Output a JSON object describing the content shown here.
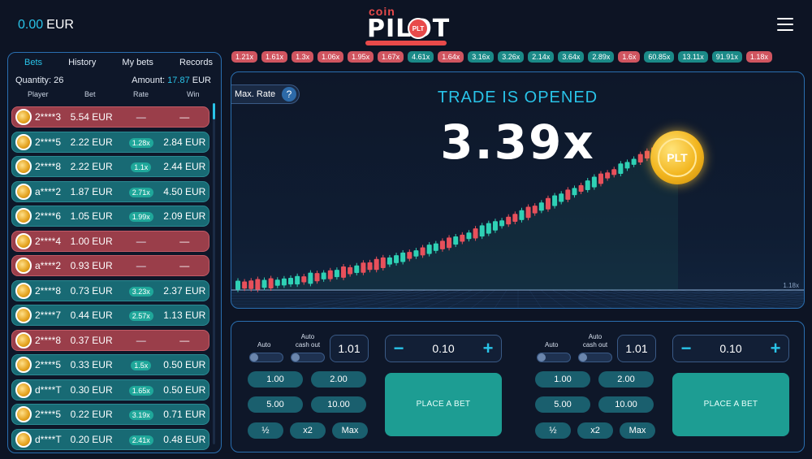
{
  "header": {
    "balance_amount": "0.00",
    "balance_currency": "EUR",
    "logo_top": "coin",
    "logo_main": "PILOT",
    "logo_badge": "PLT"
  },
  "sidebar": {
    "tabs": [
      "Bets",
      "History",
      "My bets",
      "Records"
    ],
    "active_tab": "Bets",
    "quantity_label": "Quantity:",
    "quantity_value": "26",
    "amount_label": "Amount:",
    "amount_value": "17.87",
    "amount_currency": "EUR",
    "columns": [
      "Player",
      "Bet",
      "Rate",
      "Win"
    ],
    "rows": [
      {
        "player": "2****3",
        "bet": "5.54 EUR",
        "rate": "",
        "win": "—",
        "status": "lose"
      },
      {
        "player": "2****5",
        "bet": "2.22 EUR",
        "rate": "1.28x",
        "win": "2.84 EUR",
        "status": "win"
      },
      {
        "player": "2****8",
        "bet": "2.22 EUR",
        "rate": "1.1x",
        "win": "2.44 EUR",
        "status": "win"
      },
      {
        "player": "a****2",
        "bet": "1.87 EUR",
        "rate": "2.71x",
        "win": "4.50 EUR",
        "status": "win"
      },
      {
        "player": "2****6",
        "bet": "1.05 EUR",
        "rate": "1.99x",
        "win": "2.09 EUR",
        "status": "win"
      },
      {
        "player": "2****4",
        "bet": "1.00 EUR",
        "rate": "",
        "win": "—",
        "status": "lose"
      },
      {
        "player": "a****2",
        "bet": "0.93 EUR",
        "rate": "",
        "win": "—",
        "status": "lose"
      },
      {
        "player": "2****8",
        "bet": "0.73 EUR",
        "rate": "3.23x",
        "win": "2.37 EUR",
        "status": "win"
      },
      {
        "player": "2****7",
        "bet": "0.44 EUR",
        "rate": "2.57x",
        "win": "1.13 EUR",
        "status": "win"
      },
      {
        "player": "2****8",
        "bet": "0.37 EUR",
        "rate": "",
        "win": "—",
        "status": "lose"
      },
      {
        "player": "2****5",
        "bet": "0.33 EUR",
        "rate": "1.5x",
        "win": "0.50 EUR",
        "status": "win"
      },
      {
        "player": "d****T",
        "bet": "0.30 EUR",
        "rate": "1.65x",
        "win": "0.50 EUR",
        "status": "win"
      },
      {
        "player": "2****5",
        "bet": "0.22 EUR",
        "rate": "3.19x",
        "win": "0.71 EUR",
        "status": "win"
      },
      {
        "player": "d****T",
        "bet": "0.20 EUR",
        "rate": "2.41x",
        "win": "0.48 EUR",
        "status": "win"
      }
    ]
  },
  "history": [
    {
      "v": "1.21x",
      "c": "red"
    },
    {
      "v": "1.61x",
      "c": "red"
    },
    {
      "v": "1.3x",
      "c": "red"
    },
    {
      "v": "1.06x",
      "c": "red"
    },
    {
      "v": "1.95x",
      "c": "red"
    },
    {
      "v": "1.67x",
      "c": "red"
    },
    {
      "v": "4.61x",
      "c": "teal"
    },
    {
      "v": "1.64x",
      "c": "red"
    },
    {
      "v": "3.16x",
      "c": "teal"
    },
    {
      "v": "3.26x",
      "c": "teal"
    },
    {
      "v": "2.14x",
      "c": "teal"
    },
    {
      "v": "3.64x",
      "c": "teal"
    },
    {
      "v": "2.89x",
      "c": "teal"
    },
    {
      "v": "1.6x",
      "c": "red"
    },
    {
      "v": "60.85x",
      "c": "teal"
    },
    {
      "v": "13.11x",
      "c": "teal"
    },
    {
      "v": "91.91x",
      "c": "teal"
    },
    {
      "v": "1.18x",
      "c": "red"
    }
  ],
  "game": {
    "max_rate_label": "Max. Rate",
    "help_glyph": "?",
    "status": "TRADE IS OPENED",
    "multiplier": "3.39x",
    "coin_label": "PLT",
    "scale_label": "1.18x",
    "candle_colors": {
      "up": "#2fd1b5",
      "down": "#e8505b"
    }
  },
  "bet_panels": [
    {
      "auto_label": "Auto",
      "auto_cashout_label_1": "Auto",
      "auto_cashout_label_2": "cash out",
      "cashout_value": "1.01",
      "stake_value": "0.10",
      "minus": "−",
      "plus": "+",
      "quick": [
        "1.00",
        "2.00",
        "5.00",
        "10.00"
      ],
      "modifiers": [
        "½",
        "x2",
        "Max"
      ],
      "place_label": "PLACE A BET"
    },
    {
      "auto_label": "Auto",
      "auto_cashout_label_1": "Auto",
      "auto_cashout_label_2": "cash out",
      "cashout_value": "1.01",
      "stake_value": "0.10",
      "minus": "−",
      "plus": "+",
      "quick": [
        "1.00",
        "2.00",
        "5.00",
        "10.00"
      ],
      "modifiers": [
        "½",
        "x2",
        "Max"
      ],
      "place_label": "PLACE A BET"
    }
  ]
}
